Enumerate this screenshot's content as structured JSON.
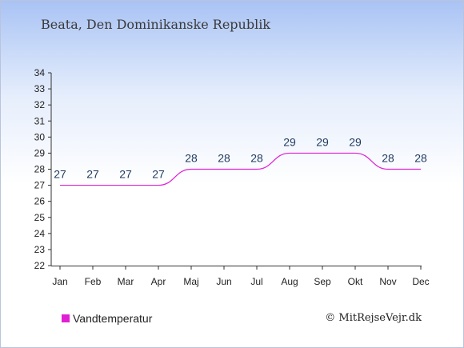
{
  "title": "Beata, Den Dominikanske Republik",
  "credit": "© MitRejseVejr.dk",
  "chart_data": {
    "type": "line",
    "categories": [
      "Jan",
      "Feb",
      "Mar",
      "Apr",
      "Maj",
      "Jun",
      "Jul",
      "Aug",
      "Sep",
      "Okt",
      "Nov",
      "Dec"
    ],
    "series": [
      {
        "name": "Vandtemperatur",
        "color": "#e01fd3",
        "values": [
          27,
          27,
          27,
          27,
          28,
          28,
          28,
          29,
          29,
          29,
          28,
          28
        ]
      }
    ],
    "data_labels": [
      "27",
      "27",
      "27",
      "27",
      "28",
      "28",
      "28",
      "29",
      "29",
      "29",
      "28",
      "28"
    ],
    "ylim": [
      22,
      34
    ],
    "yticks": [
      "22",
      "23",
      "24",
      "25",
      "26",
      "27",
      "28",
      "29",
      "30",
      "31",
      "32",
      "33",
      "34"
    ],
    "legend_position": "bottom-left",
    "grid": false
  }
}
